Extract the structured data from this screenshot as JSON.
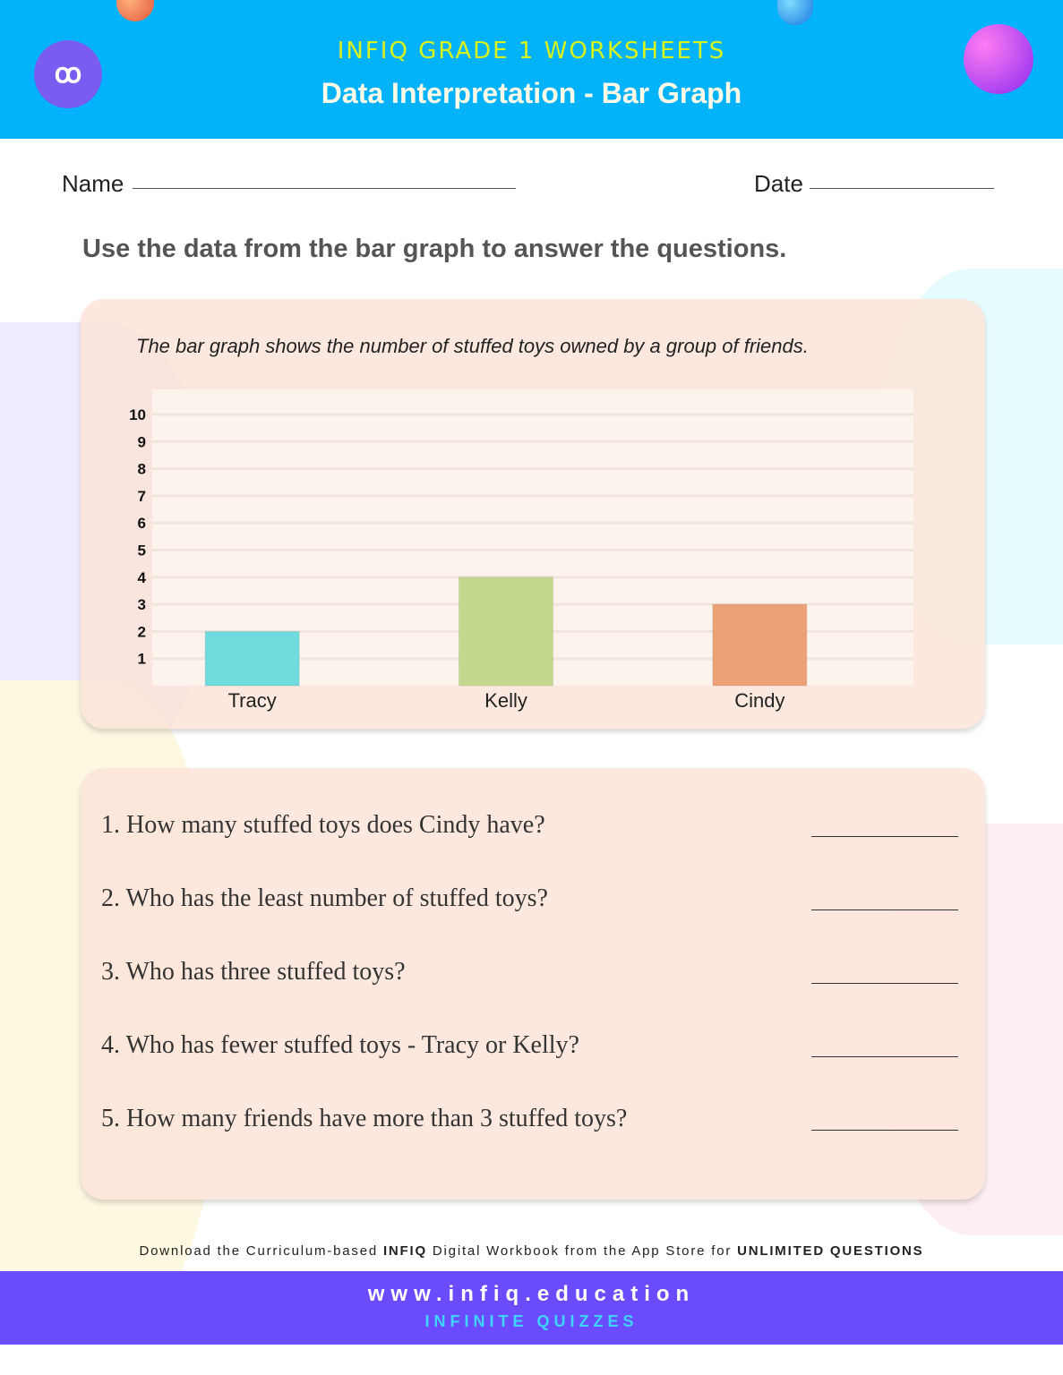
{
  "header": {
    "brand": "INFIQ GRADE 1 WORKSHEETS",
    "title": "Data Interpretation - Bar Graph",
    "logo": "ꝏ"
  },
  "form": {
    "name_label": "Name",
    "date_label": "Date"
  },
  "instructions": "Use the data from the bar graph to answer the questions.",
  "chart_data": {
    "type": "bar",
    "title": "The bar graph shows the number of stuffed toys owned by a group of friends.",
    "categories": [
      "Tracy",
      "Kelly",
      "Cindy"
    ],
    "values": [
      2,
      4,
      3
    ],
    "colors": [
      "#6fdbdc",
      "#c3d88f",
      "#eca076"
    ],
    "ylim": [
      0,
      10
    ],
    "yticks": [
      1,
      2,
      3,
      4,
      5,
      6,
      7,
      8,
      9,
      10
    ],
    "grid": true,
    "xlabel": "",
    "ylabel": ""
  },
  "questions": [
    "1.  How many stuffed toys does Cindy have?",
    "2.  Who has the least number of stuffed toys?",
    "3.  Who has three stuffed toys?",
    "4.  Who has fewer stuffed toys - Tracy or Kelly?",
    "5.  How many friends have more than 3 stuffed toys?"
  ],
  "footer": {
    "promo_pre": "Download the Curriculum-based ",
    "promo_brand": "INFIQ",
    "promo_mid": " Digital Workbook from the App Store for ",
    "promo_end": "UNLIMITED QUESTIONS",
    "url": "www.infiq.education",
    "tagline": "INFINITE QUIZZES"
  }
}
